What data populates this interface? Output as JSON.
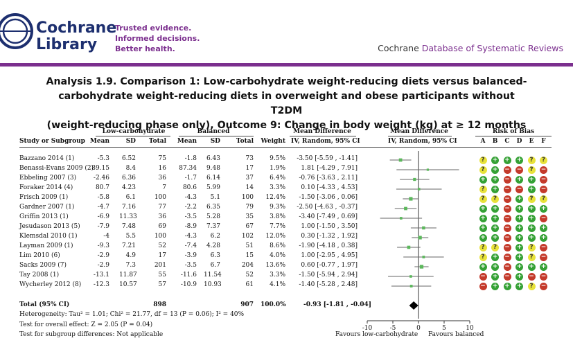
{
  "header": {
    "brand_line1": "Cochrane",
    "brand_line2": "Library",
    "tagline": [
      "Trusted evidence.",
      "Informed decisions.",
      "Better health."
    ],
    "db_prefix": "Cochrane",
    "db_name": "Database of Systematic Reviews"
  },
  "title_lines": [
    "Analysis 1.9.   Comparison 1: Low-carbohydrate weight-reducing diets versus balanced-",
    "carbohydrate weight-reducing diets in overweight and obese participants without T2DM",
    "(weight-reducing phase only), Outcome 9: Change in body weight (kg) at ≥ 12 months"
  ],
  "columns": {
    "group1": "Low-carbohydrate",
    "group2": "Balanced",
    "md_group": "Mean Difference",
    "md_group_plot": "Mean Difference",
    "rob_group": "Risk of Bias",
    "study": "Study or Subgroup",
    "mean1": "Mean",
    "sd1": "SD",
    "total1": "Total",
    "mean2": "Mean",
    "sd2": "SD",
    "total2": "Total",
    "weight": "Weight",
    "md_method": "IV, Random, 95% CI",
    "md_method_plot": "IV, Random, 95% CI",
    "rob_letters": [
      "A",
      "B",
      "C",
      "D",
      "E",
      "F"
    ]
  },
  "studies": [
    {
      "name": "Bazzano 2014 (1)",
      "mean1": "-5.3",
      "sd1": "6.52",
      "total1": "75",
      "mean2": "-1.8",
      "sd2": "6.43",
      "total2": "73",
      "weight": "9.5%",
      "ci_text": "-3.50 [-5.59 , -1.41]",
      "md": -3.5,
      "lo": -5.59,
      "hi": -1.41,
      "rob": [
        "?",
        "+",
        "+",
        "+",
        "?",
        "?"
      ]
    },
    {
      "name": "Benassi-Evans 2009 (2)",
      "mean1": "89.15",
      "sd1": "8.4",
      "total1": "16",
      "mean2": "87.34",
      "sd2": "9.48",
      "total2": "17",
      "weight": "1.9%",
      "ci_text": "1.81 [-4.29 , 7.91]",
      "md": 1.81,
      "lo": -4.29,
      "hi": 7.91,
      "rob": [
        "?",
        "+",
        "-",
        "-",
        "?",
        "-"
      ]
    },
    {
      "name": "Ebbeling 2007 (3)",
      "mean1": "-2.46",
      "sd1": "6.36",
      "total1": "36",
      "mean2": "-1.7",
      "sd2": "6.14",
      "total2": "37",
      "weight": "6.4%",
      "ci_text": "-0.76 [-3.63 , 2.11]",
      "md": -0.76,
      "lo": -3.63,
      "hi": 2.11,
      "rob": [
        "+",
        "+",
        "-",
        "+",
        "+",
        "-"
      ]
    },
    {
      "name": "Foraker 2014 (4)",
      "mean1": "80.7",
      "sd1": "4.23",
      "total1": "7",
      "mean2": "80.6",
      "sd2": "5.99",
      "total2": "14",
      "weight": "3.3%",
      "ci_text": "0.10 [-4.33 , 4.53]",
      "md": 0.1,
      "lo": -4.33,
      "hi": 4.53,
      "rob": [
        "?",
        "+",
        "-",
        "-",
        "+",
        "-"
      ]
    },
    {
      "name": "Frisch 2009 (1)",
      "mean1": "-5.8",
      "sd1": "6.1",
      "total1": "100",
      "mean2": "-4.3",
      "sd2": "5.1",
      "total2": "100",
      "weight": "12.4%",
      "ci_text": "-1.50 [-3.06 , 0.06]",
      "md": -1.5,
      "lo": -3.06,
      "hi": 0.06,
      "rob": [
        "?",
        "?",
        "-",
        "+",
        "?",
        "?"
      ]
    },
    {
      "name": "Gardner 2007 (1)",
      "mean1": "-4.7",
      "sd1": "7.16",
      "total1": "77",
      "mean2": "-2.2",
      "sd2": "6.35",
      "total2": "79",
      "weight": "9.3%",
      "ci_text": "-2.50 [-4.63 , -0.37]",
      "md": -2.5,
      "lo": -4.63,
      "hi": -0.37,
      "rob": [
        "+",
        "+",
        "-",
        "+",
        "+",
        "+"
      ]
    },
    {
      "name": "Griffin 2013 (1)",
      "mean1": "-6.9",
      "sd1": "11.33",
      "total1": "36",
      "mean2": "-3.5",
      "sd2": "5.28",
      "total2": "35",
      "weight": "3.8%",
      "ci_text": "-3.40 [-7.49 , 0.69]",
      "md": -3.4,
      "lo": -7.49,
      "hi": 0.69,
      "rob": [
        "+",
        "+",
        "-",
        "+",
        "+",
        "-"
      ]
    },
    {
      "name": "Jesudason 2013 (5)",
      "mean1": "-7.9",
      "sd1": "7.48",
      "total1": "69",
      "mean2": "-8.9",
      "sd2": "7.37",
      "total2": "67",
      "weight": "7.7%",
      "ci_text": "1.00 [-1.50 , 3.50]",
      "md": 1.0,
      "lo": -1.5,
      "hi": 3.5,
      "rob": [
        "+",
        "+",
        "-",
        "+",
        "+",
        "+"
      ]
    },
    {
      "name": "Klemsdal 2010 (1)",
      "mean1": "-4",
      "sd1": "5.5",
      "total1": "100",
      "mean2": "-4.3",
      "sd2": "6.2",
      "total2": "102",
      "weight": "12.0%",
      "ci_text": "0.30 [-1.32 , 1.92]",
      "md": 0.3,
      "lo": -1.32,
      "hi": 1.92,
      "rob": [
        "+",
        "+",
        "-",
        "+",
        "+",
        "+"
      ]
    },
    {
      "name": "Layman 2009 (1)",
      "mean1": "-9.3",
      "sd1": "7.21",
      "total1": "52",
      "mean2": "-7.4",
      "sd2": "4.28",
      "total2": "51",
      "weight": "8.6%",
      "ci_text": "-1.90 [-4.18 , 0.38]",
      "md": -1.9,
      "lo": -4.18,
      "hi": 0.38,
      "rob": [
        "?",
        "?",
        "-",
        "+",
        "?",
        "-"
      ]
    },
    {
      "name": "Lim 2010 (6)",
      "mean1": "-2.9",
      "sd1": "4.9",
      "total1": "17",
      "mean2": "-3.9",
      "sd2": "6.3",
      "total2": "15",
      "weight": "4.0%",
      "ci_text": "1.00 [-2.95 , 4.95]",
      "md": 1.0,
      "lo": -2.95,
      "hi": 4.95,
      "rob": [
        "?",
        "+",
        "-",
        "+",
        "?",
        "-"
      ]
    },
    {
      "name": "Sacks 2009 (7)",
      "mean1": "-2.9",
      "sd1": "7.3",
      "total1": "201",
      "mean2": "-3.5",
      "sd2": "6.7",
      "total2": "204",
      "weight": "13.6%",
      "ci_text": "0.60 [-0.77 , 1.97]",
      "md": 0.6,
      "lo": -0.77,
      "hi": 1.97,
      "rob": [
        "+",
        "+",
        "-",
        "+",
        "+",
        "+"
      ]
    },
    {
      "name": "Tay 2008 (1)",
      "mean1": "-13.1",
      "sd1": "11.87",
      "total1": "55",
      "mean2": "-11.6",
      "sd2": "11.54",
      "total2": "52",
      "weight": "3.3%",
      "ci_text": "-1.50 [-5.94 , 2.94]",
      "md": -1.5,
      "lo": -5.94,
      "hi": 2.94,
      "rob": [
        "-",
        "+",
        "-",
        "+",
        "-",
        "-"
      ]
    },
    {
      "name": "Wycherley 2012 (8)",
      "mean1": "-12.3",
      "sd1": "10.57",
      "total1": "57",
      "mean2": "-10.9",
      "sd2": "10.93",
      "total2": "61",
      "weight": "4.1%",
      "ci_text": "-1.40 [-5.28 , 2.48]",
      "md": -1.4,
      "lo": -5.28,
      "hi": 2.48,
      "rob": [
        "-",
        "+",
        "+",
        "+",
        "?",
        "-"
      ]
    }
  ],
  "total": {
    "label": "Total (95% CI)",
    "total1": "898",
    "total2": "907",
    "weight": "100.0%",
    "ci_text": "-0.93 [-1.81 , -0.04]",
    "md": -0.93,
    "lo": -1.81,
    "hi": -0.04
  },
  "footer": {
    "heterogeneity": "Heterogeneity: Tau² = 1.01; Chi² = 21.77, df = 13 (P = 0.06); I² = 40%",
    "overall": "Test for overall effect: Z = 2.05 (P = 0.04)",
    "subgroup": "Test for subgroup differences: Not applicable"
  },
  "axis": {
    "ticks": [
      -10,
      -5,
      0,
      5,
      10
    ],
    "tick_labels": [
      "-10",
      "-5",
      "0",
      "5",
      "10"
    ],
    "favours_left": "Favours low-carbohydrate",
    "favours_right": "Favours balanced"
  },
  "colors": {
    "purple": "#7b2f8e",
    "navy": "#1d2f6f",
    "low_risk": "#35a135",
    "unclear_risk": "#e8e23a",
    "high_risk": "#c43a2b",
    "point": "#5cb85c"
  },
  "chart_data": {
    "type": "scatter",
    "categories": [
      "Bazzano 2014 (1)",
      "Benassi-Evans 2009 (2)",
      "Ebbeling 2007 (3)",
      "Foraker 2014 (4)",
      "Frisch 2009 (1)",
      "Gardner 2007 (1)",
      "Griffin 2013 (1)",
      "Jesudason 2013 (5)",
      "Klemsdal 2010 (1)",
      "Layman 2009 (1)",
      "Lim 2010 (6)",
      "Sacks 2009 (7)",
      "Tay 2008 (1)",
      "Wycherley 2012 (8)"
    ],
    "values": [
      -3.5,
      1.81,
      -0.76,
      0.1,
      -1.5,
      -2.5,
      -3.4,
      1.0,
      0.3,
      -1.9,
      1.0,
      0.6,
      -1.5,
      -1.4
    ],
    "xlim": [
      -10,
      10
    ],
    "pooled": -0.93
  }
}
